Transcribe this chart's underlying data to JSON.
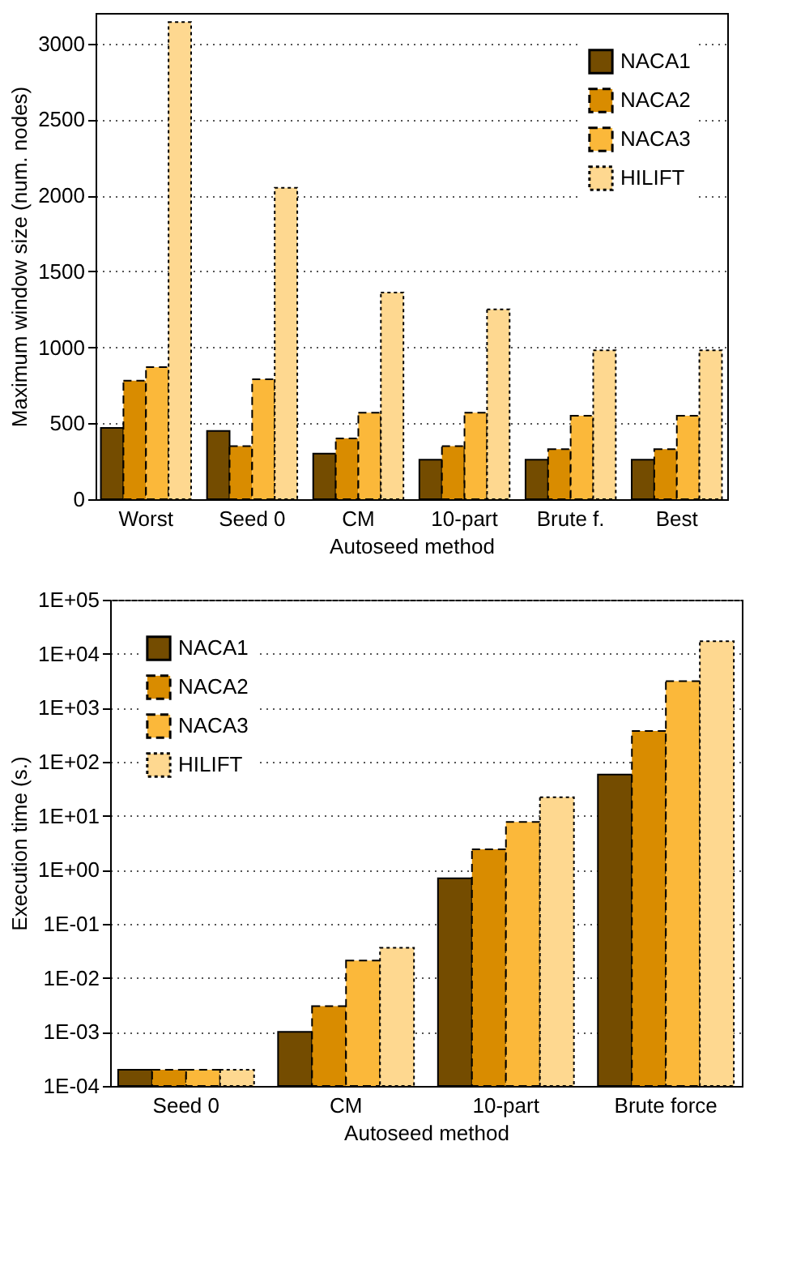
{
  "chart_data": [
    {
      "type": "bar",
      "xlabel": "Autoseed method",
      "ylabel": "Maximum window size (num. nodes)",
      "categories": [
        "Worst",
        "Seed 0",
        "CM",
        "10-part",
        "Brute f.",
        "Best"
      ],
      "series": [
        {
          "name": "NACA1",
          "color": "#744c00",
          "line_style": "solid",
          "values": [
            470,
            450,
            300,
            260,
            260,
            260
          ]
        },
        {
          "name": "NACA2",
          "color": "#d98c00",
          "line_style": "dashed",
          "values": [
            780,
            350,
            400,
            350,
            330,
            330
          ]
        },
        {
          "name": "NACA3",
          "color": "#fbb83a",
          "line_style": "dashed",
          "values": [
            870,
            790,
            570,
            570,
            550,
            550
          ]
        },
        {
          "name": "HILIFT",
          "color": "#fed890",
          "line_style": "dotted",
          "values": [
            3140,
            2050,
            1360,
            1250,
            980,
            980
          ]
        }
      ],
      "ylim": [
        0,
        3200
      ],
      "yticks": [
        0,
        500,
        1000,
        1500,
        2000,
        2500,
        3000
      ],
      "grid": "y",
      "legend": "top right"
    },
    {
      "type": "bar",
      "xlabel": "Autoseed method",
      "ylabel": "Execution time (s.)",
      "categories": [
        "Seed 0",
        "CM",
        "10-part",
        "Brute force"
      ],
      "series": [
        {
          "name": "NACA1",
          "color": "#744c00",
          "line_style": "solid",
          "values": [
            0.0002,
            0.001,
            0.7,
            58
          ]
        },
        {
          "name": "NACA2",
          "color": "#d98c00",
          "line_style": "dashed",
          "values": [
            0.0002,
            0.003,
            2.4,
            370
          ]
        },
        {
          "name": "NACA3",
          "color": "#fbb83a",
          "line_style": "dashed",
          "values": [
            0.0002,
            0.021,
            7.7,
            3100
          ]
        },
        {
          "name": "HILIFT",
          "color": "#fed890",
          "line_style": "dotted",
          "values": [
            0.0002,
            0.036,
            22,
            17000
          ]
        }
      ],
      "log": true,
      "ylim": [
        0.0001,
        100000
      ],
      "yticks": [
        {
          "value": 0.0001,
          "label": "1E-04"
        },
        {
          "value": 0.001,
          "label": "1E-03"
        },
        {
          "value": 0.01,
          "label": "1E-02"
        },
        {
          "value": 0.1,
          "label": "1E-01"
        },
        {
          "value": 1,
          "label": "1E+00"
        },
        {
          "value": 10,
          "label": "1E+01"
        },
        {
          "value": 100,
          "label": "1E+02"
        },
        {
          "value": 1000,
          "label": "1E+03"
        },
        {
          "value": 10000,
          "label": "1E+04"
        },
        {
          "value": 100000,
          "label": "1E+05"
        }
      ],
      "grid": "y",
      "legend": "top left"
    }
  ]
}
